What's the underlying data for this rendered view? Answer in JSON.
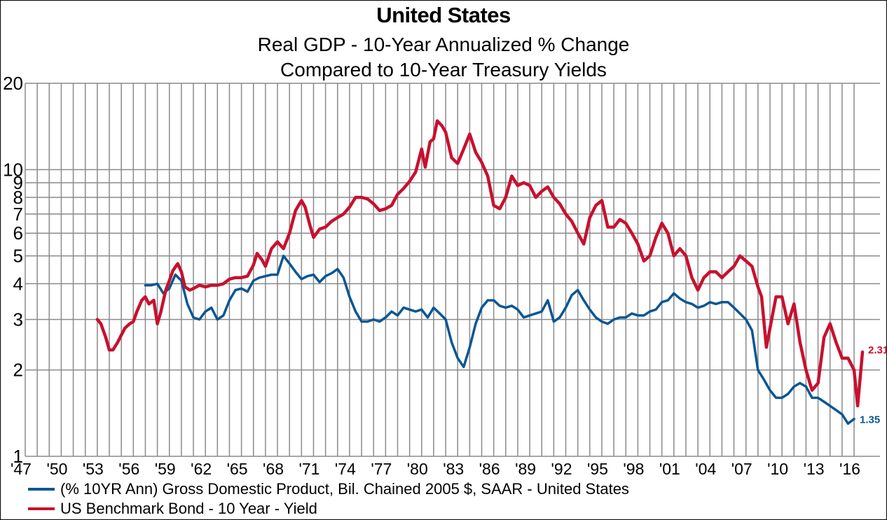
{
  "chart_data": {
    "type": "line",
    "title": "United States",
    "subtitle": [
      "Real GDP - 10-Year Annualized % Change",
      "Compared to 10-Year Treasury Yields"
    ],
    "xlabel": "",
    "ylabel": "",
    "yscale": "log",
    "ylim": [
      1,
      20
    ],
    "xlim": [
      1947,
      2016
    ],
    "y_ticks": [
      1,
      2,
      3,
      4,
      5,
      6,
      7,
      8,
      9,
      10,
      20
    ],
    "x_ticks": [
      "'47",
      "'50",
      "'53",
      "'56",
      "'59",
      "'62",
      "'65",
      "'68",
      "'71",
      "'74",
      "'77",
      "'80",
      "'83",
      "'86",
      "'89",
      "'92",
      "'95",
      "'98",
      "'01",
      "'04",
      "'07",
      "'10",
      "'13",
      "'16"
    ],
    "x_tick_years": [
      1947,
      1950,
      1953,
      1956,
      1959,
      1962,
      1965,
      1968,
      1971,
      1974,
      1977,
      1980,
      1983,
      1986,
      1989,
      1992,
      1995,
      1998,
      2001,
      2004,
      2007,
      2010,
      2013,
      2016
    ],
    "grid": true,
    "legend_position": "bottom",
    "series": [
      {
        "name": "(% 10YR Ann) Gross Domestic Product, Bil. Chained 2005 $, SAAR - United States",
        "color": "#0a5694",
        "end_label": "1.35",
        "x": [
          1957.0,
          1957.5,
          1958.0,
          1958.5,
          1959.0,
          1959.5,
          1960.0,
          1960.5,
          1961.0,
          1961.5,
          1962.0,
          1962.5,
          1963.0,
          1963.5,
          1964.0,
          1964.5,
          1965.0,
          1965.5,
          1966.0,
          1966.5,
          1967.0,
          1967.5,
          1968.0,
          1968.5,
          1969.0,
          1969.5,
          1970.0,
          1970.5,
          1971.0,
          1971.5,
          1972.0,
          1972.5,
          1973.0,
          1973.5,
          1974.0,
          1974.5,
          1975.0,
          1975.5,
          1976.0,
          1976.5,
          1977.0,
          1977.5,
          1978.0,
          1978.5,
          1979.0,
          1979.5,
          1980.0,
          1980.5,
          1981.0,
          1981.5,
          1982.0,
          1982.5,
          1983.0,
          1983.5,
          1984.0,
          1984.5,
          1985.0,
          1985.5,
          1986.0,
          1986.5,
          1987.0,
          1987.5,
          1988.0,
          1988.5,
          1989.0,
          1989.5,
          1990.0,
          1990.5,
          1991.0,
          1991.5,
          1992.0,
          1992.5,
          1993.0,
          1993.5,
          1994.0,
          1994.5,
          1995.0,
          1995.5,
          1996.0,
          1996.5,
          1997.0,
          1997.5,
          1998.0,
          1998.5,
          1999.0,
          1999.5,
          2000.0,
          2000.5,
          2001.0,
          2001.5,
          2002.0,
          2002.5,
          2003.0,
          2003.5,
          2004.0,
          2004.5,
          2005.0,
          2005.5,
          2006.0,
          2006.5,
          2007.0,
          2007.5,
          2008.0,
          2008.5,
          2009.0,
          2009.5,
          2010.0,
          2010.5,
          2011.0,
          2011.5,
          2012.0,
          2012.5,
          2013.0,
          2013.5,
          2014.0,
          2014.5,
          2015.0,
          2015.5,
          2016.0
        ],
        "y": [
          3.95,
          3.95,
          4.0,
          3.7,
          3.85,
          4.3,
          4.1,
          3.4,
          3.05,
          3.0,
          3.2,
          3.3,
          3.0,
          3.1,
          3.5,
          3.8,
          3.85,
          3.75,
          4.1,
          4.2,
          4.25,
          4.3,
          4.3,
          5.0,
          4.7,
          4.4,
          4.15,
          4.25,
          4.3,
          4.05,
          4.25,
          4.35,
          4.5,
          4.2,
          3.6,
          3.2,
          2.95,
          2.95,
          3.0,
          2.95,
          3.05,
          3.2,
          3.1,
          3.3,
          3.25,
          3.2,
          3.25,
          3.05,
          3.3,
          3.15,
          3.0,
          2.5,
          2.2,
          2.05,
          2.4,
          2.9,
          3.3,
          3.5,
          3.5,
          3.35,
          3.3,
          3.35,
          3.25,
          3.05,
          3.1,
          3.15,
          3.2,
          3.5,
          2.95,
          3.05,
          3.3,
          3.65,
          3.8,
          3.5,
          3.25,
          3.05,
          2.95,
          2.9,
          3.0,
          3.05,
          3.05,
          3.15,
          3.1,
          3.1,
          3.2,
          3.25,
          3.45,
          3.5,
          3.7,
          3.55,
          3.45,
          3.4,
          3.3,
          3.35,
          3.45,
          3.4,
          3.45,
          3.45,
          3.3,
          3.15,
          3.0,
          2.75,
          2.0,
          1.85,
          1.7,
          1.6,
          1.6,
          1.65,
          1.75,
          1.8,
          1.75,
          1.6,
          1.6,
          1.55,
          1.5,
          1.45,
          1.4,
          1.3,
          1.35
        ]
      },
      {
        "name": "US Benchmark Bond - 10 Year - Yield",
        "color": "#c8102e",
        "end_label": "2.31",
        "x": [
          1953.0,
          1953.3,
          1953.7,
          1954.0,
          1954.3,
          1954.7,
          1955.0,
          1955.3,
          1955.7,
          1956.0,
          1956.3,
          1956.7,
          1957.0,
          1957.3,
          1957.7,
          1958.0,
          1958.3,
          1958.7,
          1959.0,
          1959.3,
          1959.7,
          1960.0,
          1960.3,
          1960.7,
          1961.0,
          1961.5,
          1962.0,
          1962.5,
          1963.0,
          1963.5,
          1964.0,
          1964.5,
          1965.0,
          1965.5,
          1966.0,
          1966.3,
          1966.7,
          1967.0,
          1967.5,
          1968.0,
          1968.5,
          1969.0,
          1969.5,
          1970.0,
          1970.3,
          1970.7,
          1971.0,
          1971.5,
          1972.0,
          1972.5,
          1973.0,
          1973.5,
          1974.0,
          1974.5,
          1975.0,
          1975.5,
          1976.0,
          1976.5,
          1977.0,
          1977.5,
          1978.0,
          1978.5,
          1979.0,
          1979.5,
          1980.0,
          1980.3,
          1980.7,
          1981.0,
          1981.3,
          1981.7,
          1982.0,
          1982.5,
          1983.0,
          1983.5,
          1984.0,
          1984.5,
          1985.0,
          1985.5,
          1986.0,
          1986.5,
          1987.0,
          1987.5,
          1988.0,
          1988.5,
          1989.0,
          1989.5,
          1990.0,
          1990.5,
          1991.0,
          1991.5,
          1992.0,
          1992.5,
          1993.0,
          1993.5,
          1994.0,
          1994.5,
          1995.0,
          1995.5,
          1996.0,
          1996.5,
          1997.0,
          1997.5,
          1998.0,
          1998.5,
          1999.0,
          1999.5,
          2000.0,
          2000.5,
          2001.0,
          2001.5,
          2002.0,
          2002.5,
          2003.0,
          2003.5,
          2004.0,
          2004.5,
          2005.0,
          2005.5,
          2006.0,
          2006.5,
          2007.0,
          2007.5,
          2008.0,
          2008.3,
          2008.7,
          2009.0,
          2009.5,
          2010.0,
          2010.5,
          2011.0,
          2011.5,
          2012.0,
          2012.5,
          2013.0,
          2013.5,
          2014.0,
          2014.5,
          2015.0,
          2015.5,
          2016.0,
          2016.3,
          2016.7
        ],
        "y": [
          3.0,
          2.9,
          2.6,
          2.35,
          2.35,
          2.5,
          2.65,
          2.8,
          2.9,
          2.95,
          3.2,
          3.5,
          3.6,
          3.4,
          3.5,
          2.9,
          3.2,
          3.8,
          4.1,
          4.45,
          4.7,
          4.4,
          3.9,
          3.8,
          3.85,
          3.95,
          3.9,
          3.95,
          3.95,
          4.0,
          4.15,
          4.2,
          4.2,
          4.25,
          4.65,
          5.1,
          4.85,
          4.6,
          5.3,
          5.6,
          5.3,
          6.0,
          7.2,
          7.8,
          7.4,
          6.4,
          5.8,
          6.2,
          6.3,
          6.6,
          6.8,
          7.0,
          7.4,
          8.0,
          8.0,
          7.9,
          7.6,
          7.2,
          7.3,
          7.5,
          8.2,
          8.6,
          9.1,
          9.8,
          11.8,
          10.2,
          12.5,
          12.8,
          14.8,
          14.2,
          13.5,
          11.0,
          10.5,
          11.8,
          13.3,
          11.5,
          10.6,
          9.5,
          7.5,
          7.3,
          8.0,
          9.5,
          8.8,
          9.0,
          8.8,
          8.0,
          8.4,
          8.7,
          8.0,
          7.6,
          7.0,
          6.6,
          6.0,
          5.5,
          6.8,
          7.5,
          7.8,
          6.3,
          6.3,
          6.7,
          6.5,
          6.0,
          5.5,
          4.8,
          5.0,
          5.8,
          6.5,
          6.0,
          5.0,
          5.3,
          5.0,
          4.2,
          3.8,
          4.2,
          4.4,
          4.4,
          4.2,
          4.4,
          4.6,
          5.0,
          4.8,
          4.6,
          3.9,
          3.6,
          2.4,
          2.8,
          3.6,
          3.6,
          2.9,
          3.4,
          2.5,
          2.0,
          1.7,
          1.8,
          2.6,
          2.9,
          2.5,
          2.2,
          2.2,
          2.0,
          1.5,
          2.31
        ]
      }
    ]
  }
}
